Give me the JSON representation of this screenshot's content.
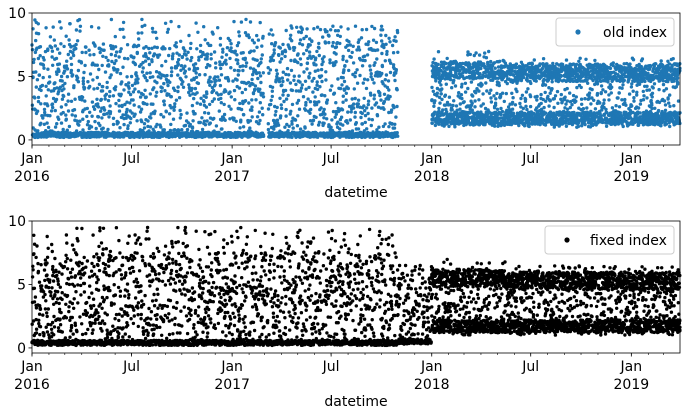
{
  "chart_data": [
    {
      "type": "scatter",
      "title": "",
      "xlabel": "datetime",
      "ylabel": "",
      "xlim": [
        "2016-01-01",
        "2019-03-31"
      ],
      "ylim": [
        -0.4,
        10
      ],
      "yticks": [
        0,
        5,
        10
      ],
      "xticks": [
        {
          "date": "2016-01-01",
          "label": "Jan",
          "year": "2016"
        },
        {
          "date": "2016-07-01",
          "label": "Jul",
          "year": ""
        },
        {
          "date": "2017-01-01",
          "label": "Jan",
          "year": "2017"
        },
        {
          "date": "2017-07-01",
          "label": "Jul",
          "year": ""
        },
        {
          "date": "2018-01-01",
          "label": "Jan",
          "year": "2018"
        },
        {
          "date": "2018-07-01",
          "label": "Jul",
          "year": ""
        },
        {
          "date": "2019-01-01",
          "label": "Jan",
          "year": "2019"
        }
      ],
      "grid": false,
      "legend_position": "top-right",
      "series": [
        {
          "name": "old index",
          "color": "#1f77b4",
          "segments": [
            {
              "start": "2016-01-01",
              "end": "2017-02-28",
              "baseline": 0.2,
              "upper": 7.5,
              "peak": 9.5
            },
            {
              "start": "2017-03-08",
              "end": "2017-10-31",
              "baseline": 0.2,
              "upper": 8.0,
              "peak": 9.0
            },
            {
              "start": "2018-01-01",
              "end": "2018-05-15",
              "baseline": 1.0,
              "upper": 6.0,
              "peak": 7.0
            },
            {
              "start": "2018-05-15",
              "end": "2019-03-31",
              "baseline": 1.0,
              "upper": 5.8,
              "peak": 6.5
            }
          ]
        }
      ]
    },
    {
      "type": "scatter",
      "title": "",
      "xlabel": "datetime",
      "ylabel": "",
      "xlim": [
        "2016-01-01",
        "2019-03-31"
      ],
      "ylim": [
        -0.4,
        10
      ],
      "yticks": [
        0,
        5,
        10
      ],
      "xticks": [
        {
          "date": "2016-01-01",
          "label": "Jan",
          "year": "2016"
        },
        {
          "date": "2016-07-01",
          "label": "Jul",
          "year": ""
        },
        {
          "date": "2017-01-01",
          "label": "Jan",
          "year": "2017"
        },
        {
          "date": "2017-07-01",
          "label": "Jul",
          "year": ""
        },
        {
          "date": "2018-01-01",
          "label": "Jan",
          "year": "2018"
        },
        {
          "date": "2018-07-01",
          "label": "Jul",
          "year": ""
        },
        {
          "date": "2019-01-01",
          "label": "Jan",
          "year": "2019"
        }
      ],
      "grid": false,
      "legend_position": "top-right",
      "series": [
        {
          "name": "fixed index",
          "color": "#000000",
          "segments": [
            {
              "start": "2016-01-01",
              "end": "2017-10-31",
              "baseline": 0.2,
              "upper": 7.5,
              "peak": 9.5
            },
            {
              "start": "2017-10-31",
              "end": "2018-01-01",
              "baseline": 0.3,
              "upper": 6.0,
              "peak": 6.5
            },
            {
              "start": "2018-01-01",
              "end": "2018-05-15",
              "baseline": 1.0,
              "upper": 6.0,
              "peak": 7.0
            },
            {
              "start": "2018-05-15",
              "end": "2019-03-31",
              "baseline": 1.0,
              "upper": 5.8,
              "peak": 6.5
            }
          ]
        }
      ]
    }
  ]
}
